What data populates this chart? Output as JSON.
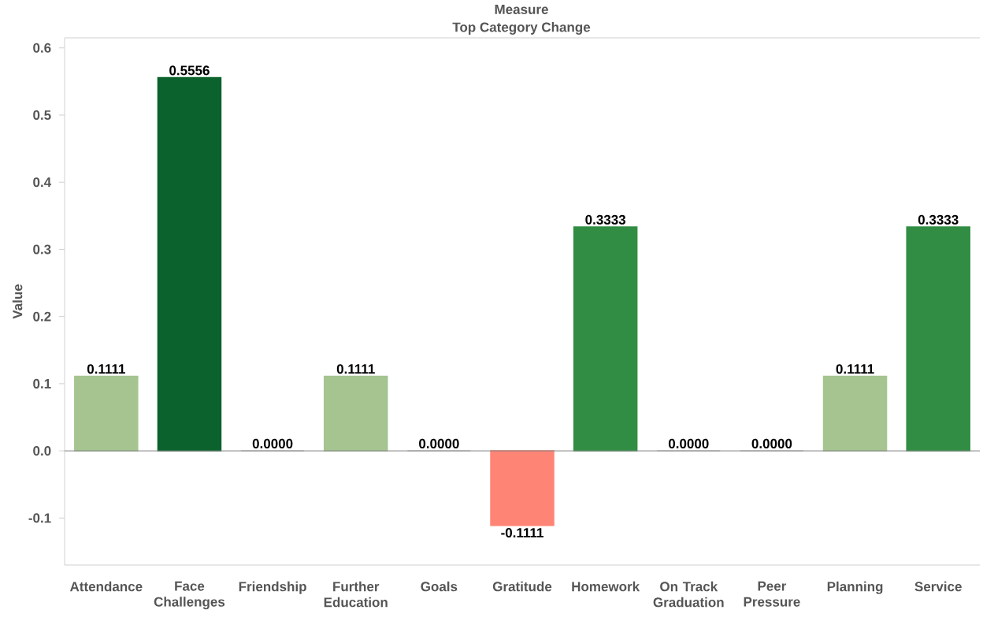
{
  "chart_data": {
    "type": "bar",
    "title": "Measure",
    "subtitle": "Top Category Change",
    "ylabel": "Value",
    "categories": [
      "Attendance",
      "Face Challenges",
      "Friendship",
      "Further Education",
      "Goals",
      "Gratitude",
      "Homework",
      "On Track Graduation",
      "Peer Pressure",
      "Planning",
      "Service"
    ],
    "values": [
      0.1111,
      0.5556,
      0,
      0.1111,
      0,
      -0.1111,
      0.3333,
      0,
      0,
      0.1111,
      0.3333
    ],
    "colors": [
      "#a5c490",
      "#0b622c",
      "#cccccc",
      "#a5c490",
      "#cccccc",
      "#fe8575",
      "#318d43",
      "#cccccc",
      "#cccccc",
      "#a5c490",
      "#318d43"
    ],
    "value_labels": [
      "0.1111",
      "0.5556",
      "0.0000",
      "0.1111",
      "0.0000",
      "-0.1111",
      "0.3333",
      "0.0000",
      "0.0000",
      "0.1111",
      "0.3333"
    ],
    "ylim": [
      -0.17,
      0.615
    ],
    "yticks": [
      -0.1,
      {
        "value": 0,
        "label": "0.0"
      },
      0.1,
      0.2,
      0.3,
      0.4,
      0.5,
      0.6
    ]
  }
}
